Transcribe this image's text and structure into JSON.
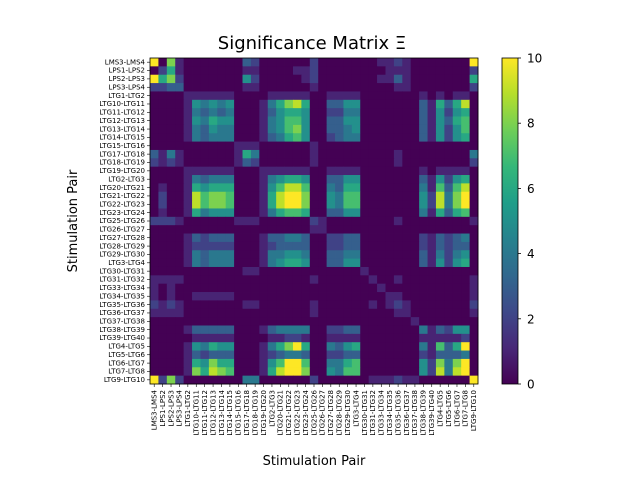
{
  "chart_data": {
    "type": "heatmap",
    "title": "Significance Matrix Ξ",
    "xlabel": "Stimulation Pair",
    "ylabel": "Stimulation Pair",
    "labels": [
      "LMS3-LMS4",
      "LPS1-LPS2",
      "LPS2-LPS3",
      "LPS3-LPS4",
      "LTG1-LTG2",
      "LTG10-LTG11",
      "LTG11-LTG12",
      "LTG12-LTG13",
      "LTG13-LTG14",
      "LTG14-LTG15",
      "LTG15-LTG16",
      "LTG17-LTG18",
      "LTG18-LTG19",
      "LTG19-LTG20",
      "LTG2-LTG3",
      "LTG20-LTG21",
      "LTG21-LTG22",
      "LTG22-LTG23",
      "LTG23-LTG24",
      "LTG25-LTG26",
      "LTG26-LTG27",
      "LTG27-LTG28",
      "LTG28-LTG29",
      "LTG29-LTG30",
      "LTG3-LTG4",
      "LTG30-LTG31",
      "LTG31-LTG32",
      "LTG33-LTG34",
      "LTG34-LTG35",
      "LTG35-LTG36",
      "LTG36-LTG37",
      "LTG37-LTG38",
      "LTG38-LTG39",
      "LTG39-LTG40",
      "LTG4-LTG5",
      "LTG5-LTG6",
      "LTG6-LTG7",
      "LTG7-LTG8",
      "LTG9-LTG10"
    ],
    "colorbar": {
      "colormap": "viridis",
      "range": [
        0,
        10
      ],
      "ticks": [
        0,
        2,
        4,
        6,
        8,
        10
      ]
    },
    "matrix": [
      [
        10,
        0,
        8,
        1,
        0,
        0,
        0,
        0,
        0,
        0,
        0,
        3,
        2,
        0,
        0,
        0,
        0,
        0,
        0,
        2,
        0,
        0,
        0,
        0,
        0,
        0,
        0,
        1,
        1,
        2,
        1,
        0,
        0,
        0,
        0,
        0,
        0,
        0,
        10
      ],
      [
        0,
        2,
        6,
        1,
        0,
        0,
        0,
        0,
        0,
        0,
        0,
        1,
        1,
        0,
        0,
        0,
        0,
        1,
        1,
        2,
        0,
        0,
        0,
        0,
        0,
        0,
        0,
        0,
        1,
        1,
        1,
        0,
        0,
        0,
        0,
        0,
        0,
        0,
        2
      ],
      [
        10,
        6,
        8,
        2,
        0,
        0,
        0,
        0,
        0,
        0,
        0,
        5,
        2,
        0,
        0,
        0,
        0,
        0,
        1,
        2,
        0,
        0,
        0,
        0,
        0,
        0,
        0,
        1,
        1,
        3,
        1,
        0,
        0,
        0,
        0,
        0,
        0,
        0,
        6
      ],
      [
        2,
        2,
        3,
        3,
        0,
        0,
        0,
        0,
        0,
        0,
        0,
        1,
        1,
        0,
        0,
        0,
        0,
        0,
        0,
        1,
        0,
        0,
        0,
        0,
        0,
        0,
        0,
        0,
        0,
        1,
        1,
        0,
        0,
        0,
        0,
        0,
        0,
        0,
        2
      ],
      [
        0,
        0,
        0,
        0,
        1,
        1,
        1,
        1,
        1,
        1,
        0,
        0,
        0,
        0,
        1,
        1,
        1,
        1,
        1,
        0,
        0,
        1,
        1,
        1,
        1,
        0,
        0,
        0,
        0,
        0,
        0,
        0,
        1,
        0,
        1,
        0,
        1,
        1,
        0
      ],
      [
        0,
        0,
        0,
        0,
        1,
        5,
        4,
        5,
        4,
        5,
        0,
        0,
        0,
        1,
        4,
        6,
        8,
        9,
        6,
        0,
        0,
        3,
        3,
        5,
        5,
        0,
        0,
        0,
        0,
        0,
        0,
        0,
        3,
        1,
        6,
        3,
        6,
        9,
        0
      ],
      [
        0,
        0,
        0,
        0,
        1,
        4,
        3,
        4,
        3,
        4,
        0,
        0,
        0,
        1,
        3,
        5,
        6,
        6,
        5,
        0,
        0,
        2,
        2,
        4,
        4,
        0,
        0,
        0,
        0,
        0,
        0,
        0,
        3,
        1,
        5,
        2,
        5,
        6,
        0
      ],
      [
        0,
        0,
        0,
        0,
        1,
        5,
        4,
        6,
        5,
        5,
        0,
        0,
        0,
        1,
        4,
        5,
        7,
        7,
        5,
        0,
        0,
        3,
        3,
        5,
        5,
        0,
        0,
        0,
        0,
        0,
        0,
        0,
        3,
        1,
        5,
        3,
        6,
        7,
        0
      ],
      [
        0,
        0,
        0,
        0,
        1,
        4,
        3,
        5,
        4,
        4,
        0,
        0,
        0,
        1,
        4,
        5,
        7,
        8,
        5,
        0,
        0,
        3,
        3,
        4,
        5,
        0,
        0,
        0,
        0,
        0,
        0,
        0,
        3,
        1,
        5,
        2,
        5,
        7,
        0
      ],
      [
        0,
        0,
        0,
        0,
        1,
        4,
        3,
        4,
        4,
        4,
        0,
        0,
        0,
        1,
        3,
        4,
        6,
        7,
        5,
        0,
        0,
        2,
        3,
        4,
        4,
        0,
        0,
        0,
        0,
        0,
        0,
        0,
        3,
        1,
        5,
        2,
        5,
        6,
        0
      ],
      [
        0,
        0,
        0,
        0,
        0,
        0,
        0,
        0,
        0,
        0,
        1,
        1,
        1,
        0,
        0,
        0,
        0,
        0,
        0,
        1,
        0,
        0,
        0,
        0,
        0,
        0,
        0,
        0,
        0,
        0,
        0,
        0,
        0,
        0,
        0,
        0,
        0,
        0,
        0
      ],
      [
        3,
        1,
        4,
        1,
        0,
        0,
        0,
        0,
        0,
        0,
        1,
        6,
        4,
        0,
        0,
        0,
        0,
        0,
        0,
        1,
        0,
        0,
        0,
        0,
        0,
        0,
        0,
        0,
        0,
        1,
        0,
        0,
        0,
        0,
        0,
        0,
        0,
        0,
        4
      ],
      [
        2,
        1,
        2,
        1,
        0,
        0,
        0,
        0,
        0,
        0,
        1,
        3,
        2,
        0,
        0,
        0,
        0,
        0,
        0,
        1,
        0,
        0,
        0,
        0,
        0,
        0,
        0,
        0,
        0,
        1,
        0,
        0,
        0,
        0,
        0,
        0,
        0,
        0,
        2
      ],
      [
        0,
        0,
        0,
        0,
        1,
        1,
        1,
        1,
        1,
        1,
        0,
        0,
        0,
        1,
        1,
        1,
        1,
        1,
        1,
        0,
        0,
        1,
        1,
        1,
        1,
        0,
        0,
        0,
        0,
        0,
        0,
        0,
        1,
        0,
        1,
        1,
        1,
        1,
        0
      ],
      [
        0,
        0,
        0,
        0,
        1,
        4,
        3,
        4,
        4,
        4,
        0,
        0,
        0,
        1,
        4,
        5,
        6,
        6,
        5,
        0,
        0,
        3,
        3,
        5,
        5,
        0,
        0,
        0,
        0,
        0,
        0,
        0,
        3,
        1,
        5,
        2,
        5,
        6,
        0
      ],
      [
        0,
        1,
        0,
        0,
        1,
        6,
        5,
        6,
        6,
        6,
        0,
        0,
        0,
        1,
        5,
        7,
        9,
        9,
        7,
        0,
        0,
        4,
        3,
        6,
        6,
        0,
        0,
        0,
        0,
        0,
        0,
        0,
        4,
        1,
        7,
        3,
        7,
        9,
        0
      ],
      [
        0,
        2,
        0,
        0,
        1,
        9,
        7,
        8,
        8,
        7,
        0,
        0,
        0,
        1,
        6,
        9,
        10,
        10,
        8,
        0,
        0,
        5,
        4,
        7,
        7,
        0,
        0,
        0,
        0,
        0,
        0,
        0,
        5,
        2,
        9,
        4,
        8,
        10,
        0
      ],
      [
        0,
        2,
        0,
        0,
        1,
        9,
        7,
        8,
        8,
        7,
        0,
        0,
        0,
        1,
        6,
        9,
        10,
        10,
        8,
        0,
        0,
        5,
        4,
        7,
        7,
        0,
        0,
        0,
        0,
        0,
        0,
        0,
        5,
        2,
        9,
        4,
        8,
        10,
        0
      ],
      [
        0,
        1,
        0,
        0,
        1,
        6,
        4,
        5,
        5,
        5,
        0,
        0,
        0,
        1,
        4,
        6,
        7,
        7,
        6,
        0,
        0,
        3,
        3,
        5,
        5,
        0,
        0,
        0,
        0,
        0,
        0,
        0,
        4,
        1,
        6,
        3,
        6,
        7,
        0
      ],
      [
        2,
        2,
        2,
        1,
        0,
        0,
        0,
        0,
        0,
        0,
        1,
        1,
        1,
        0,
        0,
        0,
        0,
        0,
        0,
        2,
        1,
        0,
        0,
        0,
        0,
        0,
        0,
        0,
        0,
        1,
        0,
        0,
        0,
        0,
        0,
        0,
        0,
        0,
        1
      ],
      [
        0,
        0,
        0,
        0,
        0,
        0,
        0,
        0,
        0,
        0,
        0,
        0,
        0,
        0,
        0,
        0,
        0,
        0,
        0,
        1,
        1,
        0,
        0,
        0,
        0,
        0,
        0,
        0,
        0,
        0,
        0,
        0,
        0,
        0,
        0,
        0,
        0,
        0,
        0
      ],
      [
        0,
        0,
        0,
        0,
        1,
        3,
        2,
        3,
        3,
        3,
        0,
        0,
        0,
        1,
        3,
        3,
        4,
        4,
        3,
        0,
        0,
        2,
        2,
        3,
        3,
        0,
        0,
        0,
        0,
        0,
        0,
        0,
        2,
        1,
        3,
        2,
        3,
        4,
        0
      ],
      [
        0,
        0,
        0,
        0,
        1,
        2,
        2,
        2,
        2,
        2,
        0,
        0,
        0,
        1,
        2,
        3,
        3,
        3,
        3,
        0,
        0,
        2,
        2,
        3,
        3,
        0,
        0,
        0,
        0,
        0,
        0,
        0,
        2,
        1,
        3,
        2,
        3,
        3,
        0
      ],
      [
        0,
        0,
        0,
        0,
        1,
        4,
        3,
        4,
        4,
        4,
        0,
        0,
        0,
        1,
        4,
        4,
        5,
        5,
        4,
        0,
        0,
        3,
        3,
        4,
        4,
        0,
        0,
        0,
        0,
        0,
        0,
        0,
        3,
        1,
        4,
        2,
        4,
        5,
        0
      ],
      [
        0,
        0,
        0,
        0,
        1,
        4,
        3,
        4,
        4,
        4,
        0,
        0,
        0,
        1,
        4,
        5,
        6,
        6,
        5,
        0,
        0,
        3,
        3,
        5,
        5,
        0,
        0,
        0,
        0,
        0,
        0,
        0,
        3,
        1,
        5,
        2,
        5,
        6,
        0
      ],
      [
        0,
        0,
        0,
        0,
        0,
        0,
        0,
        0,
        0,
        0,
        0,
        1,
        1,
        0,
        0,
        0,
        0,
        0,
        0,
        0,
        0,
        0,
        0,
        0,
        0,
        1,
        0,
        0,
        0,
        0,
        0,
        0,
        0,
        0,
        0,
        0,
        0,
        0,
        0
      ],
      [
        1,
        1,
        1,
        1,
        0,
        0,
        0,
        0,
        0,
        0,
        0,
        0,
        0,
        0,
        0,
        0,
        0,
        0,
        0,
        1,
        0,
        0,
        0,
        0,
        0,
        0,
        1,
        0,
        0,
        1,
        0,
        0,
        0,
        0,
        0,
        0,
        0,
        0,
        1
      ],
      [
        1,
        0,
        1,
        0,
        0,
        0,
        0,
        0,
        0,
        0,
        0,
        0,
        0,
        0,
        0,
        0,
        0,
        0,
        0,
        0,
        0,
        0,
        0,
        0,
        0,
        0,
        0,
        1,
        0,
        0,
        0,
        0,
        0,
        0,
        0,
        0,
        0,
        0,
        1
      ],
      [
        1,
        0,
        1,
        0,
        0,
        1,
        1,
        1,
        1,
        1,
        0,
        0,
        0,
        0,
        0,
        0,
        0,
        0,
        0,
        0,
        0,
        0,
        0,
        0,
        0,
        0,
        0,
        0,
        1,
        1,
        0,
        0,
        0,
        0,
        0,
        0,
        0,
        0,
        1
      ],
      [
        2,
        1,
        2,
        1,
        0,
        0,
        0,
        0,
        0,
        0,
        0,
        1,
        1,
        0,
        0,
        0,
        0,
        0,
        0,
        1,
        0,
        0,
        0,
        0,
        0,
        0,
        1,
        0,
        1,
        2,
        1,
        0,
        0,
        0,
        0,
        0,
        0,
        0,
        2
      ],
      [
        1,
        1,
        1,
        1,
        0,
        0,
        0,
        0,
        0,
        0,
        0,
        0,
        0,
        0,
        0,
        0,
        0,
        0,
        0,
        1,
        0,
        0,
        0,
        0,
        0,
        0,
        0,
        0,
        0,
        1,
        1,
        0,
        0,
        0,
        0,
        0,
        0,
        0,
        1
      ],
      [
        0,
        0,
        0,
        0,
        0,
        0,
        0,
        0,
        0,
        0,
        0,
        0,
        0,
        0,
        0,
        0,
        0,
        0,
        0,
        0,
        0,
        0,
        0,
        0,
        0,
        0,
        0,
        0,
        0,
        0,
        0,
        1,
        0,
        0,
        0,
        0,
        0,
        0,
        0
      ],
      [
        0,
        0,
        0,
        0,
        1,
        3,
        3,
        3,
        3,
        3,
        0,
        0,
        0,
        1,
        3,
        4,
        4,
        4,
        4,
        0,
        0,
        2,
        2,
        3,
        3,
        0,
        0,
        0,
        0,
        0,
        0,
        0,
        4,
        1,
        3,
        2,
        5,
        5,
        0
      ],
      [
        0,
        0,
        0,
        0,
        0,
        1,
        1,
        1,
        1,
        1,
        0,
        0,
        0,
        0,
        1,
        1,
        2,
        2,
        1,
        0,
        0,
        1,
        1,
        1,
        1,
        0,
        0,
        0,
        0,
        0,
        0,
        0,
        1,
        1,
        1,
        1,
        1,
        2,
        0
      ],
      [
        0,
        0,
        0,
        0,
        1,
        5,
        4,
        6,
        5,
        5,
        0,
        0,
        0,
        1,
        4,
        6,
        8,
        10,
        6,
        0,
        0,
        4,
        3,
        5,
        6,
        0,
        0,
        0,
        0,
        0,
        0,
        0,
        4,
        1,
        7,
        3,
        6,
        10,
        0
      ],
      [
        0,
        0,
        0,
        0,
        1,
        3,
        2,
        3,
        3,
        3,
        0,
        0,
        0,
        1,
        2,
        3,
        4,
        4,
        3,
        0,
        0,
        2,
        2,
        3,
        3,
        0,
        0,
        0,
        0,
        0,
        0,
        0,
        2,
        1,
        3,
        3,
        3,
        4,
        0
      ],
      [
        0,
        0,
        0,
        0,
        1,
        6,
        5,
        8,
        6,
        6,
        0,
        0,
        0,
        1,
        5,
        7,
        10,
        10,
        7,
        0,
        0,
        4,
        4,
        6,
        7,
        0,
        0,
        0,
        0,
        0,
        0,
        0,
        5,
        2,
        8,
        4,
        8,
        10,
        0
      ],
      [
        0,
        0,
        0,
        0,
        1,
        8,
        6,
        9,
        8,
        7,
        0,
        0,
        0,
        1,
        6,
        9,
        10,
        10,
        8,
        0,
        0,
        5,
        4,
        7,
        7,
        0,
        0,
        0,
        0,
        0,
        0,
        0,
        5,
        2,
        9,
        4,
        9,
        10,
        0
      ],
      [
        10,
        2,
        8,
        2,
        0,
        0,
        0,
        0,
        0,
        0,
        0,
        4,
        4,
        0,
        0,
        0,
        0,
        0,
        0,
        2,
        0,
        0,
        0,
        0,
        0,
        0,
        1,
        1,
        1,
        2,
        1,
        1,
        0,
        0,
        0,
        0,
        0,
        0,
        10
      ]
    ]
  }
}
